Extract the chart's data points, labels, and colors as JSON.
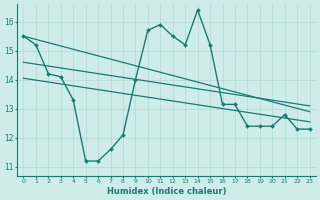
{
  "title": "",
  "xlabel": "Humidex (Indice chaleur)",
  "ylabel": "",
  "background_color": "#ceecea",
  "line_color": "#1a7a72",
  "grid_color": "#b0d8d5",
  "xlim": [
    -0.5,
    23.5
  ],
  "ylim": [
    10.7,
    16.6
  ],
  "yticks": [
    11,
    12,
    13,
    14,
    15,
    16
  ],
  "xticks": [
    0,
    1,
    2,
    3,
    4,
    5,
    6,
    7,
    8,
    9,
    10,
    11,
    12,
    13,
    14,
    15,
    16,
    17,
    18,
    19,
    20,
    21,
    22,
    23
  ],
  "series": [
    {
      "x": [
        0,
        1,
        2,
        3,
        4,
        5,
        6,
        7,
        8,
        9,
        10,
        11,
        12,
        13,
        14,
        15,
        16,
        17,
        18,
        19,
        20,
        21,
        22,
        23
      ],
      "y": [
        15.5,
        15.2,
        14.2,
        14.1,
        13.3,
        11.2,
        11.2,
        11.6,
        12.1,
        14.0,
        15.7,
        15.9,
        15.5,
        15.2,
        16.4,
        15.2,
        13.15,
        13.15,
        12.4,
        12.4,
        12.4,
        12.8,
        12.3,
        12.3
      ],
      "marker": "D",
      "markersize": 2.0,
      "linewidth": 1.0
    },
    {
      "x": [
        0,
        23
      ],
      "y": [
        15.5,
        12.9
      ],
      "marker": null,
      "linewidth": 0.9
    },
    {
      "x": [
        0,
        23
      ],
      "y": [
        14.6,
        13.1
      ],
      "marker": null,
      "linewidth": 0.9
    },
    {
      "x": [
        0,
        23
      ],
      "y": [
        14.05,
        12.55
      ],
      "marker": null,
      "linewidth": 0.9
    }
  ]
}
